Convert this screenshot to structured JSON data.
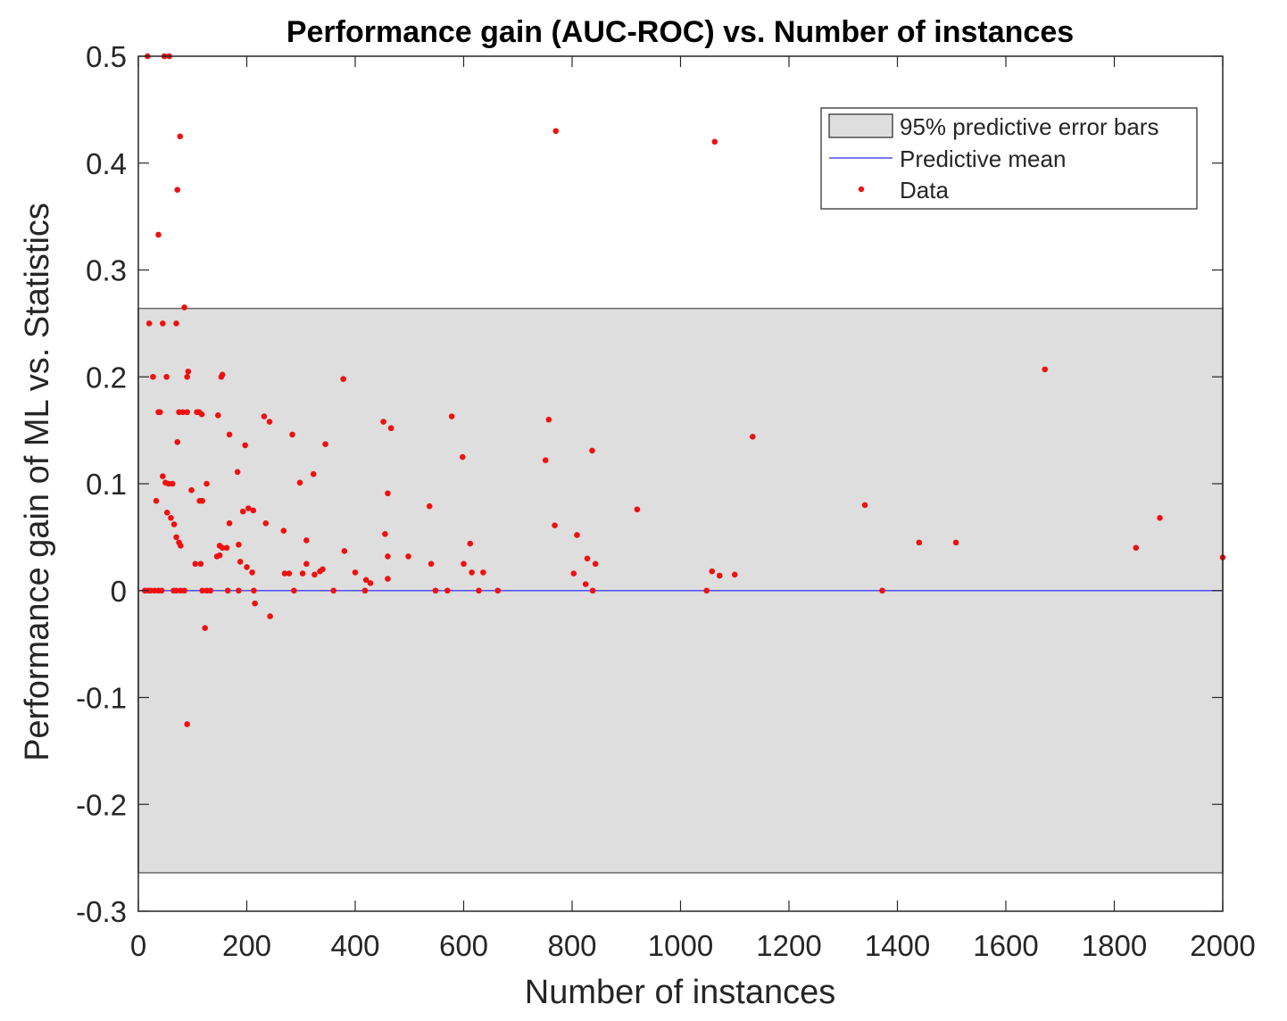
{
  "chart_data": {
    "type": "scatter",
    "title": "Performance gain (AUC-ROC) vs. Number of instances",
    "xlabel": "Number of instances",
    "ylabel": "Performance gain of ML vs. Statistics",
    "xlim": [
      0,
      2000
    ],
    "ylim": [
      -0.3,
      0.5
    ],
    "xticks": [
      0,
      200,
      400,
      600,
      800,
      1000,
      1200,
      1400,
      1600,
      1800,
      2000
    ],
    "xtick_labels": [
      "0",
      "200",
      "400",
      "600",
      "800",
      "1000",
      "1200",
      "1400",
      "1600",
      "1800",
      "2000"
    ],
    "yticks": [
      -0.3,
      -0.2,
      -0.1,
      0,
      0.1,
      0.2,
      0.3,
      0.4,
      0.5
    ],
    "ytick_labels": [
      "-0.3",
      "-0.2",
      "-0.1",
      "0",
      "0.1",
      "0.2",
      "0.3",
      "0.4",
      "0.5"
    ],
    "grid": false,
    "legend_position": "top-right",
    "band": {
      "name": "95% predictive error bars",
      "lower": -0.264,
      "upper": 0.264,
      "color": "#dedede"
    },
    "mean_line": {
      "name": "Predictive mean",
      "value": 0,
      "color": "#4d4dff"
    },
    "points_series": {
      "name": "Data",
      "color": "#ee1111"
    },
    "points": [
      [
        17,
        0.5
      ],
      [
        48,
        0.5
      ],
      [
        57,
        0.5
      ],
      [
        72,
        0.375
      ],
      [
        37,
        0.333
      ],
      [
        85,
        0.265
      ],
      [
        77,
        0.425
      ],
      [
        770,
        0.43
      ],
      [
        1063,
        0.42
      ],
      [
        20,
        0.25
      ],
      [
        45,
        0.25
      ],
      [
        70,
        0.25
      ],
      [
        27,
        0.2
      ],
      [
        52,
        0.2
      ],
      [
        90,
        0.2
      ],
      [
        92,
        0.205
      ],
      [
        153,
        0.2
      ],
      [
        155,
        0.202
      ],
      [
        378,
        0.198
      ],
      [
        37,
        0.167
      ],
      [
        40,
        0.167
      ],
      [
        75,
        0.167
      ],
      [
        82,
        0.167
      ],
      [
        90,
        0.167
      ],
      [
        108,
        0.167
      ],
      [
        112,
        0.167
      ],
      [
        117,
        0.165
      ],
      [
        147,
        0.164
      ],
      [
        232,
        0.163
      ],
      [
        242,
        0.158
      ],
      [
        452,
        0.158
      ],
      [
        466,
        0.152
      ],
      [
        578,
        0.163
      ],
      [
        757,
        0.16
      ],
      [
        1672,
        0.207
      ],
      [
        168,
        0.146
      ],
      [
        284,
        0.146
      ],
      [
        197,
        0.136
      ],
      [
        345,
        0.137
      ],
      [
        72,
        0.139
      ],
      [
        598,
        0.125
      ],
      [
        751,
        0.122
      ],
      [
        837,
        0.131
      ],
      [
        1133,
        0.144
      ],
      [
        183,
        0.111
      ],
      [
        45,
        0.107
      ],
      [
        50,
        0.101
      ],
      [
        56,
        0.1
      ],
      [
        63,
        0.1
      ],
      [
        323,
        0.109
      ],
      [
        126,
        0.1
      ],
      [
        298,
        0.101
      ],
      [
        98,
        0.094
      ],
      [
        460,
        0.091
      ],
      [
        33,
        0.084
      ],
      [
        113,
        0.084
      ],
      [
        118,
        0.084
      ],
      [
        53,
        0.073
      ],
      [
        60,
        0.068
      ],
      [
        66,
        0.062
      ],
      [
        168,
        0.063
      ],
      [
        235,
        0.063
      ],
      [
        193,
        0.074
      ],
      [
        203,
        0.077
      ],
      [
        212,
        0.075
      ],
      [
        537,
        0.079
      ],
      [
        920,
        0.076
      ],
      [
        1340,
        0.08
      ],
      [
        1884,
        0.068
      ],
      [
        70,
        0.05
      ],
      [
        75,
        0.045
      ],
      [
        78,
        0.042
      ],
      [
        150,
        0.042
      ],
      [
        155,
        0.04
      ],
      [
        163,
        0.04
      ],
      [
        185,
        0.043
      ],
      [
        268,
        0.056
      ],
      [
        310,
        0.047
      ],
      [
        455,
        0.053
      ],
      [
        612,
        0.044
      ],
      [
        768,
        0.061
      ],
      [
        809,
        0.052
      ],
      [
        1440,
        0.045
      ],
      [
        1508,
        0.045
      ],
      [
        1840,
        0.04
      ],
      [
        105,
        0.025
      ],
      [
        115,
        0.025
      ],
      [
        145,
        0.032
      ],
      [
        150,
        0.033
      ],
      [
        188,
        0.027
      ],
      [
        200,
        0.022
      ],
      [
        210,
        0.017
      ],
      [
        270,
        0.016
      ],
      [
        278,
        0.016
      ],
      [
        303,
        0.016
      ],
      [
        310,
        0.025
      ],
      [
        325,
        0.015
      ],
      [
        335,
        0.018
      ],
      [
        340,
        0.02
      ],
      [
        380,
        0.037
      ],
      [
        400,
        0.017
      ],
      [
        420,
        0.01
      ],
      [
        428,
        0.007
      ],
      [
        460,
        0.032
      ],
      [
        460,
        0.011
      ],
      [
        498,
        0.032
      ],
      [
        540,
        0.025
      ],
      [
        600,
        0.025
      ],
      [
        615,
        0.017
      ],
      [
        636,
        0.017
      ],
      [
        803,
        0.016
      ],
      [
        828,
        0.03
      ],
      [
        843,
        0.025
      ],
      [
        825,
        0.006
      ],
      [
        1058,
        0.018
      ],
      [
        1072,
        0.014
      ],
      [
        1100,
        0.015
      ],
      [
        2000,
        0.031
      ],
      [
        12,
        0
      ],
      [
        18,
        0
      ],
      [
        23,
        0
      ],
      [
        30,
        0
      ],
      [
        37,
        0
      ],
      [
        43,
        0
      ],
      [
        65,
        0
      ],
      [
        70,
        0
      ],
      [
        78,
        0
      ],
      [
        85,
        0
      ],
      [
        118,
        0
      ],
      [
        126,
        0
      ],
      [
        133,
        0
      ],
      [
        165,
        0
      ],
      [
        185,
        0
      ],
      [
        213,
        0
      ],
      [
        287,
        0
      ],
      [
        360,
        0
      ],
      [
        418,
        0
      ],
      [
        548,
        0
      ],
      [
        570,
        0
      ],
      [
        628,
        0
      ],
      [
        663,
        0
      ],
      [
        838,
        0
      ],
      [
        1048,
        0
      ],
      [
        1372,
        0
      ],
      [
        215,
        -0.012
      ],
      [
        243,
        -0.024
      ],
      [
        123,
        -0.035
      ],
      [
        90,
        -0.125
      ]
    ]
  }
}
